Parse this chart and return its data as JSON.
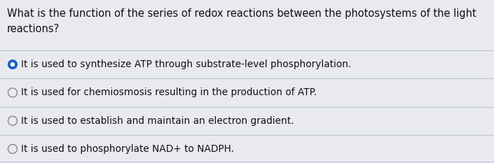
{
  "background_color": "#e8eaf0",
  "question_line1": "What is the function of the series of redox reactions between the photosystems of the light",
  "question_line2": "reactions?",
  "options": [
    "It is used to synthesize ATP through substrate-level phosphorylation.",
    "It is used for chemiosmosis resulting in the production of ATP.",
    "It is used to establish and maintain an electron gradient.",
    "It is used to phosphorylate NAD+ to NADPH."
  ],
  "selected_index": 0,
  "selected_fill_color": "#1a5fc8",
  "selected_dot_color": "#ffffff",
  "unselected_border_color": "#888888",
  "text_color": "#111111",
  "question_fontsize": 10.5,
  "option_fontsize": 9.8,
  "divider_color": "#c0c4cc",
  "divider_linewidth": 0.8,
  "fig_width": 7.05,
  "fig_height": 2.33,
  "dpi": 100
}
